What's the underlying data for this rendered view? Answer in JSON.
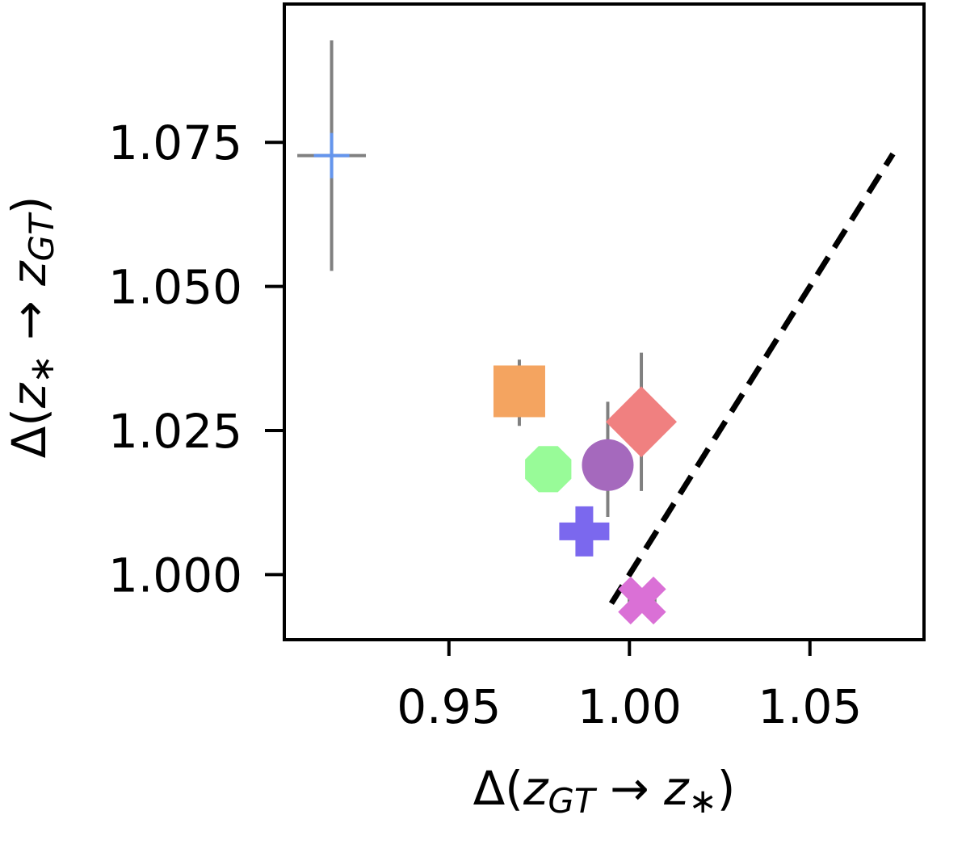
{
  "chart_data": {
    "type": "scatter",
    "title": "",
    "xlabel": {
      "prefix": "Δ(",
      "a": "z",
      "a_sub": "GT",
      "arrow": " → ",
      "b": "z",
      "b_sub": "∗",
      "suffix": ")"
    },
    "ylabel": {
      "prefix": "Δ(",
      "a": "z",
      "a_sub": "∗",
      "arrow": " → ",
      "b": "z",
      "b_sub": "GT",
      "suffix": ")"
    },
    "xlim": [
      0.9044,
      1.0816
    ],
    "ylim": [
      0.9887,
      1.099
    ],
    "xticks": [
      {
        "value": 0.95,
        "label": "0.95"
      },
      {
        "value": 1.0,
        "label": "1.00"
      },
      {
        "value": 1.05,
        "label": "1.05"
      }
    ],
    "yticks": [
      {
        "value": 1.0,
        "label": "1.000"
      },
      {
        "value": 1.025,
        "label": "1.025"
      },
      {
        "value": 1.05,
        "label": "1.050"
      },
      {
        "value": 1.075,
        "label": "1.075"
      }
    ],
    "grid": false,
    "legend": "none",
    "reference_line": {
      "style": "dashed",
      "color": "#000000",
      "x": [
        0.995,
        1.073
      ],
      "y": [
        0.995,
        1.073
      ]
    },
    "errorbar_color": "#808080",
    "points": [
      {
        "marker": "plus",
        "color": "#6495ED",
        "x": 0.9175,
        "y": 1.0727,
        "xerr": 0.0095,
        "yerr_low": 0.02,
        "yerr_high": 0.02
      },
      {
        "marker": "square",
        "color": "#F4A460",
        "x": 0.9695,
        "y": 1.0318,
        "xerr": 0.0,
        "yerr_low": 0.006,
        "yerr_high": 0.0055
      },
      {
        "marker": "diamond",
        "color": "#F08080",
        "x": 1.0033,
        "y": 1.0265,
        "xerr": 0.0,
        "yerr_low": 0.012,
        "yerr_high": 0.012
      },
      {
        "marker": "octagon",
        "color": "#98FB98",
        "x": 0.9775,
        "y": 1.0183,
        "xerr": 0.0,
        "yerr_low": 0.0,
        "yerr_high": 0.0
      },
      {
        "marker": "circle",
        "color": "#A569BD",
        "x": 0.994,
        "y": 1.019,
        "xerr": 0.0,
        "yerr_low": 0.009,
        "yerr_high": 0.011
      },
      {
        "marker": "plus-filled",
        "color": "#7B68EE",
        "x": 0.9875,
        "y": 1.0075,
        "xerr": 0.0,
        "yerr_low": 0.0,
        "yerr_high": 0.0
      },
      {
        "marker": "x-filled",
        "color": "#DA70D6",
        "x": 1.0035,
        "y": 0.9955,
        "xerr": 0.004,
        "yerr_low": 0.0,
        "yerr_high": 0.0
      }
    ]
  }
}
